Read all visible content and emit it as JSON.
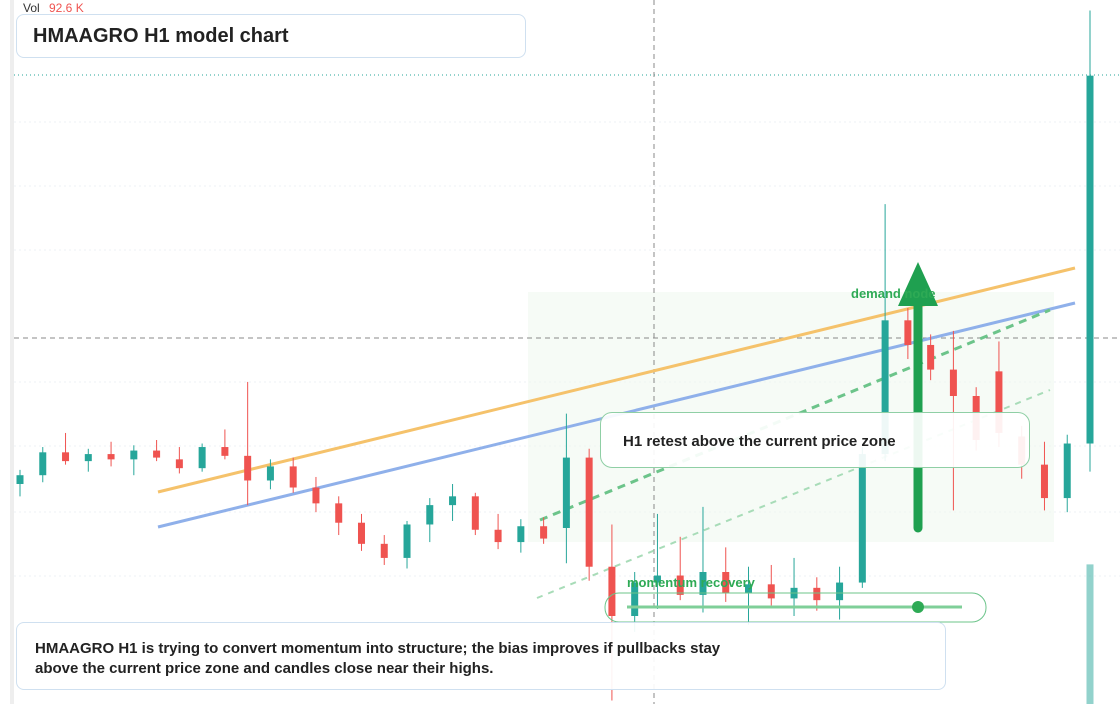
{
  "chart_data": {
    "type": "candlestick",
    "title": "HMAAGRO H1 model chart",
    "volume_label": "Vol",
    "volume": 92600,
    "volume_value_label": "92.6 K",
    "volume_ylim": [
      0,
      130000
    ],
    "ylim": [
      90,
      130
    ],
    "up_color": "#26a69a",
    "down_color": "#ef5350",
    "open": [
      102.5,
      103.0,
      104.3,
      103.8,
      104.2,
      103.9,
      104.4,
      103.9,
      103.4,
      104.6,
      104.1,
      102.7,
      103.5,
      102.3,
      101.4,
      100.3,
      99.1,
      98.3,
      100.2,
      101.3,
      101.8,
      99.9,
      99.2,
      100.1,
      100.0,
      104.0,
      97.8,
      95.0,
      96.9,
      97.3,
      96.2,
      97.5,
      96.3,
      96.8,
      96.0,
      96.6,
      95.9,
      96.9,
      104.2,
      111.8,
      110.4,
      109.0,
      107.5,
      108.9,
      105.2,
      103.6,
      101.7,
      104.8
    ],
    "high": [
      103.3,
      104.6,
      105.4,
      104.5,
      104.9,
      104.7,
      105.0,
      104.6,
      104.8,
      105.6,
      108.3,
      103.9,
      104.0,
      102.9,
      101.8,
      100.8,
      99.6,
      100.4,
      101.7,
      102.5,
      102.0,
      100.8,
      100.5,
      100.6,
      106.5,
      104.5,
      100.2,
      97.5,
      100.8,
      99.5,
      101.2,
      98.9,
      97.8,
      97.9,
      98.3,
      97.2,
      97.8,
      104.6,
      118.4,
      112.5,
      111.0,
      111.2,
      108.0,
      110.6,
      105.8,
      104.9,
      105.3,
      129.4
    ],
    "low": [
      101.8,
      102.6,
      103.6,
      103.2,
      103.5,
      103.0,
      103.8,
      103.1,
      103.2,
      103.9,
      101.3,
      102.2,
      102.0,
      100.9,
      99.6,
      98.7,
      97.9,
      97.7,
      99.2,
      100.4,
      99.6,
      98.8,
      98.6,
      99.1,
      98.0,
      97.0,
      90.2,
      94.1,
      95.4,
      95.9,
      95.2,
      95.8,
      94.5,
      95.6,
      95.0,
      95.3,
      94.8,
      96.6,
      103.8,
      109.6,
      108.4,
      101.0,
      104.4,
      104.6,
      102.8,
      101.0,
      100.9,
      103.2
    ],
    "close": [
      103.0,
      104.3,
      103.8,
      104.2,
      103.9,
      104.4,
      104.0,
      103.4,
      104.6,
      104.1,
      102.7,
      103.5,
      102.3,
      101.4,
      100.3,
      99.1,
      98.3,
      100.2,
      101.3,
      101.8,
      99.9,
      99.2,
      100.1,
      99.4,
      104.0,
      97.8,
      95.0,
      96.9,
      97.3,
      96.2,
      97.5,
      96.3,
      96.8,
      96.0,
      96.6,
      95.9,
      96.9,
      104.2,
      111.8,
      110.4,
      109.0,
      107.5,
      105.0,
      105.4,
      103.6,
      101.7,
      104.8,
      125.7
    ],
    "annotations": [
      "demand node",
      "H1 retest above the current price zone",
      "momentum recovery"
    ],
    "note": "HMAAGRO H1 is trying to convert momentum into structure; the bias improves if pullbacks stay above the current price zone and candles close near their highs."
  }
}
